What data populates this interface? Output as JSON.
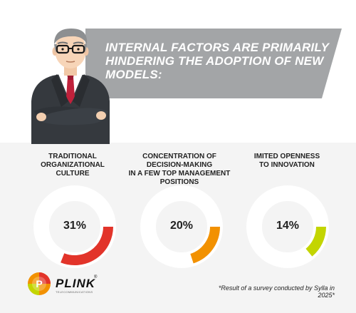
{
  "headline": "INTERNAL FACTORS ARE PRIMARILY HINDERING THE ADOPTION OF NEW MODELS:",
  "chart_data": {
    "type": "pie",
    "categories": [
      "TRADITIONAL ORGANIZATIONAL CULTURE",
      "CONCENTRATION OF DECISION-MAKING IN A FEW TOP MANAGEMENT POSITIONS",
      "IMITED OPENNESS TO INNOVATION"
    ],
    "values": [
      31,
      20,
      14
    ],
    "value_labels": [
      "31%",
      "20%",
      "14%"
    ],
    "colors": [
      "#e2342a",
      "#f29100",
      "#c3d500"
    ],
    "track_color": "#ffffff"
  },
  "categories": [
    {
      "line1": "TRADITIONAL",
      "line2": "ORGANIZATIONAL",
      "line3": "CULTURE"
    },
    {
      "line1": "CONCENTRATION OF",
      "line2": "DECISION-MAKING",
      "line3": "IN A FEW TOP MANAGEMENT",
      "line4": "POSITIONS"
    },
    {
      "line1": "IMITED OPENNESS",
      "line2": "TO INNOVATION"
    }
  ],
  "logo": {
    "name": "PLINK",
    "registered": "®",
    "tagline": "TELECOMMUNICATIONS",
    "mark": "P"
  },
  "footnote": "*Result of a survey conducted by Sylla in 2025*",
  "colors": {
    "banner": "#a3a5a7",
    "panel": "#f4f4f4",
    "text": "#222222"
  }
}
